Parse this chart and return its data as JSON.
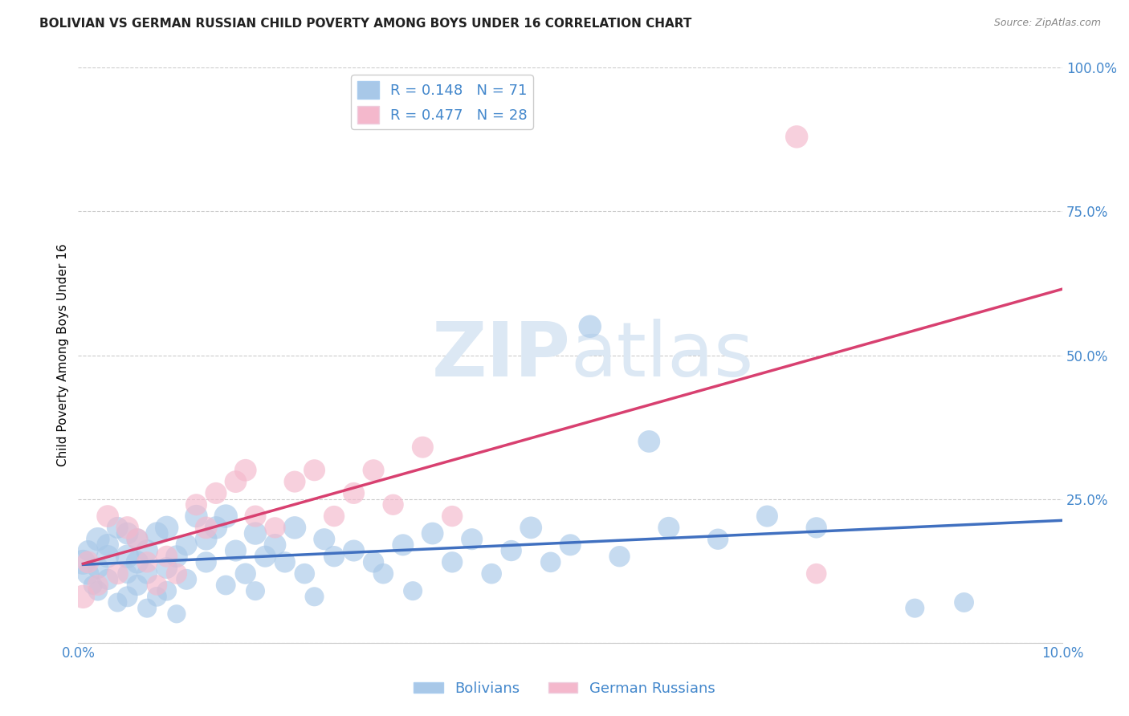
{
  "title": "BOLIVIAN VS GERMAN RUSSIAN CHILD POVERTY AMONG BOYS UNDER 16 CORRELATION CHART",
  "source": "Source: ZipAtlas.com",
  "ylabel": "Child Poverty Among Boys Under 16",
  "xlim": [
    0.0,
    0.1
  ],
  "ylim": [
    0.0,
    1.0
  ],
  "yticks": [
    0.0,
    0.25,
    0.5,
    0.75,
    1.0
  ],
  "ytick_labels": [
    "",
    "25.0%",
    "50.0%",
    "75.0%",
    "100.0%"
  ],
  "xticks": [
    0.0,
    0.025,
    0.05,
    0.075,
    0.1
  ],
  "xtick_labels": [
    "0.0%",
    "",
    "",
    "",
    "10.0%"
  ],
  "blue_color": "#a8c8e8",
  "pink_color": "#f4b8cc",
  "blue_line_color": "#4070c0",
  "pink_line_color": "#d84070",
  "grid_color": "#cccccc",
  "title_color": "#222222",
  "label_color": "#4488cc",
  "R_blue": 0.148,
  "N_blue": 71,
  "R_pink": 0.477,
  "N_pink": 28,
  "bolivians_x": [
    0.0005,
    0.001,
    0.001,
    0.0015,
    0.002,
    0.002,
    0.002,
    0.003,
    0.003,
    0.003,
    0.004,
    0.004,
    0.005,
    0.005,
    0.005,
    0.005,
    0.006,
    0.006,
    0.006,
    0.007,
    0.007,
    0.007,
    0.008,
    0.008,
    0.009,
    0.009,
    0.009,
    0.01,
    0.01,
    0.011,
    0.011,
    0.012,
    0.013,
    0.013,
    0.014,
    0.015,
    0.015,
    0.016,
    0.017,
    0.018,
    0.018,
    0.019,
    0.02,
    0.021,
    0.022,
    0.023,
    0.024,
    0.025,
    0.026,
    0.028,
    0.03,
    0.031,
    0.033,
    0.034,
    0.036,
    0.038,
    0.04,
    0.042,
    0.044,
    0.046,
    0.048,
    0.05,
    0.052,
    0.055,
    0.058,
    0.06,
    0.065,
    0.07,
    0.075,
    0.085,
    0.09
  ],
  "bolivians_y": [
    0.14,
    0.12,
    0.16,
    0.1,
    0.18,
    0.13,
    0.09,
    0.15,
    0.11,
    0.17,
    0.07,
    0.2,
    0.15,
    0.19,
    0.08,
    0.12,
    0.14,
    0.1,
    0.18,
    0.06,
    0.16,
    0.12,
    0.19,
    0.08,
    0.2,
    0.13,
    0.09,
    0.15,
    0.05,
    0.17,
    0.11,
    0.22,
    0.18,
    0.14,
    0.2,
    0.22,
    0.1,
    0.16,
    0.12,
    0.19,
    0.09,
    0.15,
    0.17,
    0.14,
    0.2,
    0.12,
    0.08,
    0.18,
    0.15,
    0.16,
    0.14,
    0.12,
    0.17,
    0.09,
    0.19,
    0.14,
    0.18,
    0.12,
    0.16,
    0.2,
    0.14,
    0.17,
    0.55,
    0.15,
    0.35,
    0.2,
    0.18,
    0.22,
    0.2,
    0.06,
    0.07
  ],
  "bolivians_size": [
    500,
    400,
    350,
    300,
    450,
    380,
    320,
    420,
    360,
    400,
    300,
    380,
    450,
    400,
    350,
    320,
    420,
    360,
    380,
    300,
    400,
    350,
    420,
    320,
    450,
    380,
    320,
    400,
    280,
    380,
    350,
    420,
    400,
    360,
    420,
    450,
    320,
    380,
    360,
    420,
    300,
    380,
    400,
    360,
    420,
    340,
    300,
    380,
    360,
    380,
    360,
    340,
    380,
    300,
    400,
    360,
    380,
    340,
    360,
    400,
    340,
    380,
    420,
    360,
    400,
    380,
    360,
    380,
    360,
    300,
    320
  ],
  "german_russian_x": [
    0.0005,
    0.001,
    0.002,
    0.003,
    0.004,
    0.005,
    0.006,
    0.007,
    0.008,
    0.009,
    0.01,
    0.012,
    0.013,
    0.014,
    0.016,
    0.017,
    0.018,
    0.02,
    0.022,
    0.024,
    0.026,
    0.028,
    0.03,
    0.032,
    0.035,
    0.038,
    0.073,
    0.075
  ],
  "german_russian_y": [
    0.08,
    0.14,
    0.1,
    0.22,
    0.12,
    0.2,
    0.18,
    0.14,
    0.1,
    0.15,
    0.12,
    0.24,
    0.2,
    0.26,
    0.28,
    0.3,
    0.22,
    0.2,
    0.28,
    0.3,
    0.22,
    0.26,
    0.3,
    0.24,
    0.34,
    0.22,
    0.88,
    0.12
  ],
  "german_russian_size": [
    450,
    400,
    360,
    400,
    380,
    420,
    380,
    360,
    340,
    380,
    360,
    380,
    400,
    380,
    400,
    400,
    380,
    360,
    380,
    380,
    360,
    380,
    380,
    360,
    380,
    360,
    420,
    340
  ],
  "legend_label_blue": "Bolivians",
  "legend_label_pink": "German Russians",
  "watermark_zip": "ZIP",
  "watermark_atlas": "atlas",
  "watermark_color": "#dce8f4"
}
